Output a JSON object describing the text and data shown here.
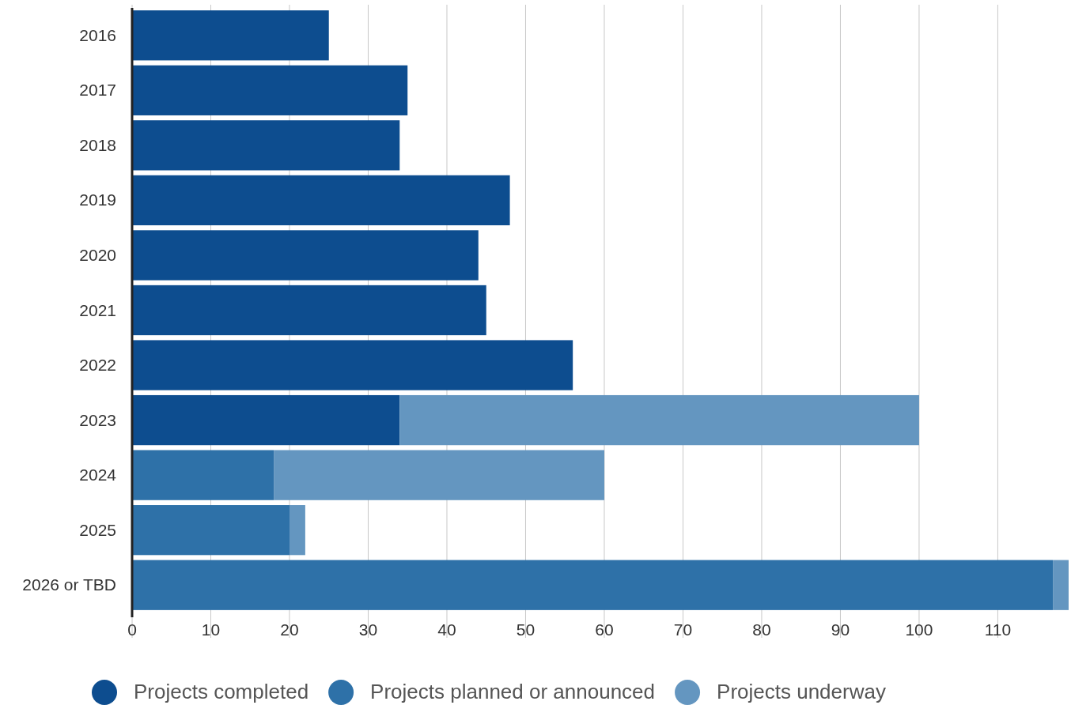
{
  "chart_data": {
    "type": "bar",
    "orientation": "horizontal",
    "stacked": true,
    "categories": [
      "2016",
      "2017",
      "2018",
      "2019",
      "2020",
      "2021",
      "2022",
      "2023",
      "2024",
      "2025",
      "2026 or TBD"
    ],
    "series": [
      {
        "name": "Projects completed",
        "color": "#0d4d8f",
        "values": [
          25,
          35,
          34,
          48,
          44,
          45,
          56,
          34,
          0,
          0,
          0
        ]
      },
      {
        "name": "Projects planned or announced",
        "color": "#2e71a8",
        "values": [
          0,
          0,
          0,
          0,
          0,
          0,
          0,
          0,
          18,
          20,
          117
        ]
      },
      {
        "name": "Projects underway",
        "color": "#6496c0",
        "values": [
          0,
          0,
          0,
          0,
          0,
          0,
          0,
          66,
          42,
          2,
          2
        ]
      }
    ],
    "xlim": [
      0,
      119
    ],
    "xticks": [
      0,
      10,
      20,
      30,
      40,
      50,
      60,
      70,
      80,
      90,
      100,
      110
    ],
    "grid": "x",
    "legend": "bottom"
  }
}
